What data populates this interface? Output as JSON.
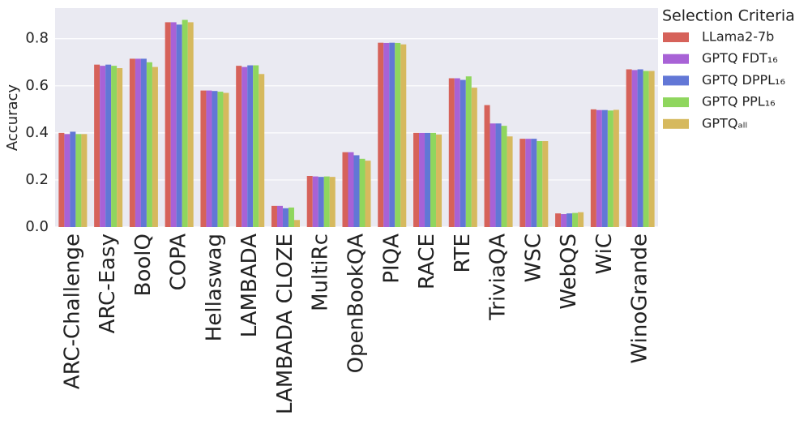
{
  "chart_data": {
    "type": "bar",
    "y_label": "Accuracy",
    "legend_title": "Selection Criteria",
    "legend": "right",
    "grid": true,
    "categories": [
      "ARC-Challenge",
      "ARC-Easy",
      "BoolQ",
      "COPA",
      "Hellaswag",
      "LAMBADA",
      "LAMBADA CLOZE",
      "MultiRc",
      "OpenBookQA",
      "PIQA",
      "RACE",
      "RTE",
      "TriviaQA",
      "WSC",
      "WebQS",
      "WiC",
      "WinoGrande"
    ],
    "series": [
      {
        "name": "LLama2-7b",
        "color": "#d6625a",
        "values": [
          0.4,
          0.69,
          0.715,
          0.87,
          0.58,
          0.685,
          0.09,
          0.217,
          0.318,
          0.783,
          0.4,
          0.632,
          0.518,
          0.375,
          0.058,
          0.5,
          0.67
        ]
      },
      {
        "name": "GPTQ FDT₁₆",
        "color": "#a862d6",
        "values": [
          0.395,
          0.685,
          0.715,
          0.87,
          0.58,
          0.68,
          0.09,
          0.215,
          0.318,
          0.782,
          0.4,
          0.632,
          0.44,
          0.375,
          0.055,
          0.497,
          0.667
        ]
      },
      {
        "name": "GPTQ DPPL₁₆",
        "color": "#6277d6",
        "values": [
          0.405,
          0.69,
          0.715,
          0.86,
          0.578,
          0.687,
          0.08,
          0.213,
          0.305,
          0.783,
          0.4,
          0.625,
          0.44,
          0.375,
          0.058,
          0.497,
          0.67
        ]
      },
      {
        "name": "GPTQ PPL₁₆",
        "color": "#8fd65e",
        "values": [
          0.395,
          0.685,
          0.7,
          0.88,
          0.575,
          0.687,
          0.083,
          0.215,
          0.29,
          0.782,
          0.4,
          0.64,
          0.43,
          0.365,
          0.06,
          0.495,
          0.663
        ]
      },
      {
        "name": "GPTQₐₗₗ",
        "color": "#d6b95e",
        "values": [
          0.395,
          0.675,
          0.68,
          0.87,
          0.57,
          0.65,
          0.03,
          0.213,
          0.282,
          0.776,
          0.393,
          0.592,
          0.385,
          0.365,
          0.063,
          0.498,
          0.663
        ]
      }
    ],
    "ylim": [
      0,
      0.93
    ],
    "yticks": [
      {
        "value": 0,
        "label": "0.0"
      },
      {
        "value": 0.2,
        "label": "0.2"
      },
      {
        "value": 0.4,
        "label": "0.4"
      },
      {
        "value": 0.6,
        "label": "0.6"
      },
      {
        "value": 0.8,
        "label": "0.8"
      }
    ]
  }
}
